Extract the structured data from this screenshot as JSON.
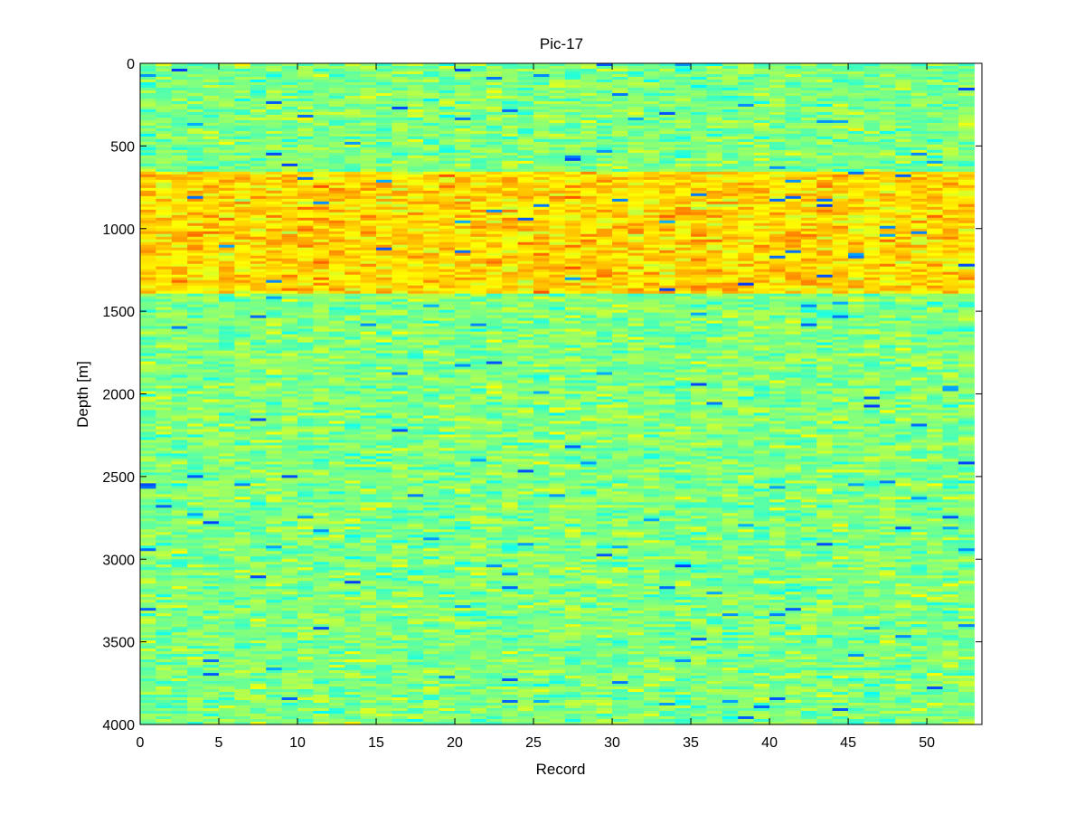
{
  "chart_data": {
    "type": "heatmap",
    "title": "Pic-17",
    "xlabel": "Record",
    "ylabel": "Depth [m]",
    "xlim": [
      0,
      53.5
    ],
    "ylim": [
      4000,
      0
    ],
    "y_axis_reversed": true,
    "x_ticks": [
      0,
      5,
      10,
      15,
      20,
      25,
      30,
      35,
      40,
      45,
      50
    ],
    "x_tick_labels": [
      "0",
      "5",
      "10",
      "15",
      "20",
      "25",
      "30",
      "35",
      "40",
      "45",
      "50"
    ],
    "y_ticks": [
      0,
      500,
      1000,
      1500,
      2000,
      2500,
      3000,
      3500,
      4000
    ],
    "y_tick_labels": [
      "0",
      "500",
      "1000",
      "1500",
      "2000",
      "2500",
      "3000",
      "3500",
      "4000"
    ],
    "records": {
      "first": 0.5,
      "last": 53.5,
      "count": 53,
      "width": 1
    },
    "depth_range": [
      0,
      4000
    ],
    "colormap": "jet",
    "value_range": [
      0,
      1
    ],
    "bands": [
      {
        "depth_from": 0,
        "depth_to": 650,
        "mean_value": 0.5,
        "description": "background noise"
      },
      {
        "depth_from": 650,
        "depth_to": 1400,
        "mean_value": 0.66,
        "description": "high-intensity layer"
      },
      {
        "depth_from": 1400,
        "depth_to": 4000,
        "mean_value": 0.5,
        "description": "background noise"
      }
    ],
    "grid": false,
    "legend": "none"
  }
}
